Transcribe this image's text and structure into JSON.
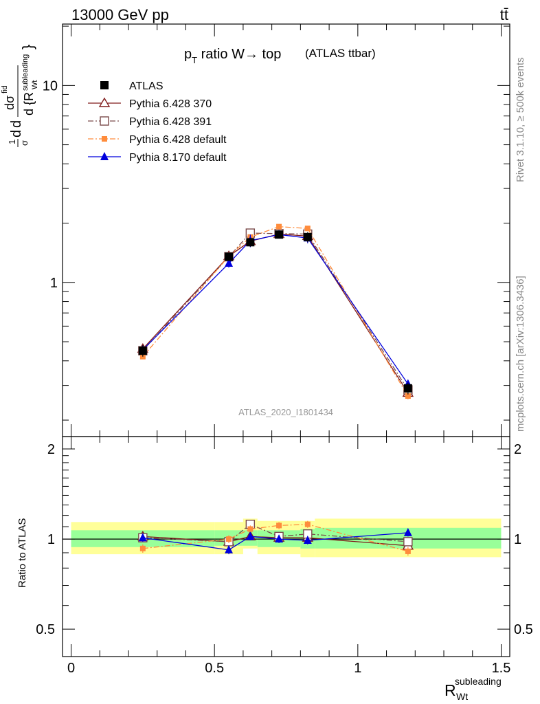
{
  "header": {
    "beam": "13000 GeV pp",
    "process": "tt̄",
    "analysis_tag": "ATLAS_2020_I1801434",
    "rivet": "Rivet 3.1.10, ≥ 500k events",
    "source": "mcplots.cern.ch [arXiv:1306.3436]"
  },
  "main_panel": {
    "title": "p",
    "title_sub": "T",
    "title_rest": " ratio W→ top",
    "title_small": "(ATLAS ttbar)",
    "ylabel": "dσ/dR (1/σ · dσ/dR)",
    "yticks": [
      "1",
      "10"
    ]
  },
  "ratio_panel": {
    "ylabel": "Ratio to ATLAS",
    "yticks": [
      "0.5",
      "1",
      "2"
    ]
  },
  "xaxis": {
    "label_main": "R",
    "label_sub": "Wt",
    "label_sup": "subleading",
    "ticks": [
      "0",
      "0.5",
      "1",
      "1.5"
    ]
  },
  "legend": [
    {
      "label": "ATLAS",
      "color": "#000000",
      "marker": "filled-square",
      "line": "none"
    },
    {
      "label": "Pythia 6.428 370",
      "color": "#7f1a1a",
      "marker": "open-triangle",
      "line": "solid"
    },
    {
      "label": "Pythia 6.428 391",
      "color": "#7a4a4a",
      "marker": "open-square",
      "line": "dash-dot"
    },
    {
      "label": "Pythia 6.428 default",
      "color": "#ff8c3c",
      "marker": "filled-circle",
      "line": "dash-dot"
    },
    {
      "label": "Pythia 8.170 default",
      "color": "#0000dd",
      "marker": "filled-triangle",
      "line": "solid"
    }
  ],
  "chart_data": {
    "type": "line",
    "x_scale": "linear",
    "y_scale": "log",
    "xlim": [
      -0.03,
      1.53
    ],
    "ylim": [
      0.165,
      20.5
    ],
    "ratio_ylim": [
      0.405,
      2.2
    ],
    "x": [
      0.25,
      0.55,
      0.625,
      0.725,
      0.825,
      1.175
    ],
    "bins": [
      [
        0.0,
        0.5
      ],
      [
        0.5,
        0.6
      ],
      [
        0.6,
        0.65
      ],
      [
        0.65,
        0.8
      ],
      [
        0.8,
        0.85
      ],
      [
        0.85,
        1.5
      ]
    ],
    "band_total": [
      [
        0.89,
        1.14
      ],
      [
        0.89,
        1.14
      ],
      [
        0.93,
        1.17
      ],
      [
        0.89,
        1.15
      ],
      [
        0.87,
        1.15
      ],
      [
        0.87,
        1.17
      ]
    ],
    "band_stat": [
      [
        0.94,
        1.07
      ],
      [
        0.95,
        1.07
      ],
      [
        0.95,
        1.07
      ],
      [
        0.94,
        1.07
      ],
      [
        0.93,
        1.08
      ],
      [
        0.93,
        1.09
      ]
    ],
    "series": [
      {
        "name": "ATLAS",
        "y": [
          0.45,
          1.35,
          1.6,
          1.75,
          1.7,
          0.29
        ],
        "err": [
          0.03,
          0.06,
          0.08,
          0.08,
          0.1,
          0.02
        ]
      },
      {
        "name": "Pythia 6.428 370",
        "y": [
          0.46,
          1.36,
          1.62,
          1.76,
          1.72,
          0.275
        ],
        "err": [
          0.01,
          0.03,
          0.04,
          0.04,
          0.04,
          0.01
        ]
      },
      {
        "name": "Pythia 6.428 391",
        "y": [
          0.45,
          1.35,
          1.78,
          1.77,
          1.76,
          0.285
        ],
        "err": [
          0.01,
          0.03,
          0.04,
          0.04,
          0.04,
          0.01
        ]
      },
      {
        "name": "Pythia 6.428 default",
        "y": [
          0.42,
          1.36,
          1.7,
          1.92,
          1.88,
          0.265
        ],
        "err": [
          0.01,
          0.03,
          0.04,
          0.04,
          0.04,
          0.01
        ]
      },
      {
        "name": "Pythia 8.170 default",
        "y": [
          0.455,
          1.25,
          1.63,
          1.75,
          1.68,
          0.305
        ],
        "err": [
          0.01,
          0.06,
          0.12,
          0.06,
          0.1,
          0.015
        ]
      }
    ],
    "ratios": [
      {
        "name": "Pythia 6.428 370",
        "y": [
          1.02,
          0.98,
          1.02,
          1.01,
          1.01,
          0.95
        ]
      },
      {
        "name": "Pythia 6.428 391",
        "y": [
          1.01,
          0.98,
          1.12,
          1.02,
          1.04,
          0.98
        ]
      },
      {
        "name": "Pythia 6.428 default",
        "y": [
          0.93,
          1.0,
          1.08,
          1.11,
          1.12,
          0.91
        ]
      },
      {
        "name": "Pythia 8.170 default",
        "y": [
          1.01,
          0.92,
          1.02,
          1.0,
          0.99,
          1.05
        ]
      }
    ],
    "ratio_err": [
      [
        0.03,
        0.04,
        0.06
      ],
      [
        0.03,
        0.03,
        0.03,
        0.03,
        0.05,
        0.03
      ]
    ]
  }
}
